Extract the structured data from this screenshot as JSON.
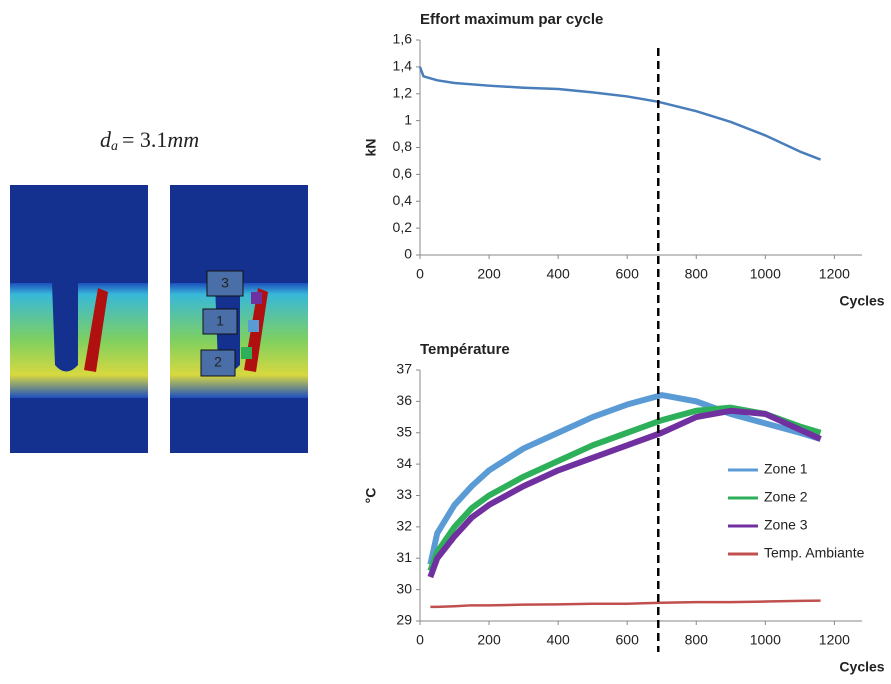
{
  "image": {
    "formula": {
      "symbol": "d",
      "subscript": "a",
      "equals": "= 3.1",
      "unit": "mm"
    },
    "zone_labels": [
      "3",
      "1",
      "2"
    ]
  },
  "chart_data": [
    {
      "type": "line",
      "title": "Effort maximum par cycle",
      "y_label": "kN",
      "x_label": "Cycles",
      "x": [
        0,
        10,
        50,
        100,
        200,
        300,
        400,
        500,
        600,
        690,
        800,
        900,
        1000,
        1100,
        1160
      ],
      "values": [
        1.4,
        1.33,
        1.3,
        1.28,
        1.26,
        1.245,
        1.235,
        1.21,
        1.18,
        1.14,
        1.07,
        0.99,
        0.89,
        0.77,
        0.71
      ],
      "color": "#4a7ebb",
      "marker_x": 690,
      "xlim": [
        0,
        1280
      ],
      "xticks": [
        0,
        200,
        400,
        600,
        800,
        1000,
        1200
      ],
      "ylim": [
        0,
        1.6
      ],
      "yticks": [
        0,
        {
          "value": 0.2,
          "label": "0,2"
        },
        {
          "value": 0.4,
          "label": "0,4"
        },
        {
          "value": 0.6,
          "label": "0,6"
        },
        {
          "value": 0.8,
          "label": "0,8"
        },
        1,
        {
          "value": 1.2,
          "label": "1,2"
        },
        {
          "value": 1.4,
          "label": "1,4"
        },
        {
          "value": 1.6,
          "label": "1,6"
        }
      ],
      "grid": false
    },
    {
      "type": "line",
      "title": "Température",
      "y_label": "°C",
      "x_label": "Cycles",
      "x": [
        30,
        50,
        100,
        150,
        200,
        300,
        400,
        500,
        600,
        700,
        800,
        900,
        1000,
        1100,
        1160
      ],
      "series": [
        {
          "name": "Zone 1",
          "color": "#5b9bd5",
          "values": [
            30.8,
            31.8,
            32.7,
            33.3,
            33.8,
            34.5,
            35.0,
            35.5,
            35.9,
            36.2,
            36.0,
            35.6,
            35.3,
            35.0,
            34.8
          ]
        },
        {
          "name": "Zone 2",
          "color": "#2eb05a",
          "values": [
            30.6,
            31.2,
            32.0,
            32.6,
            33.0,
            33.6,
            34.1,
            34.6,
            35.0,
            35.4,
            35.7,
            35.8,
            35.6,
            35.2,
            35.0
          ]
        },
        {
          "name": "Zone 3",
          "color": "#7030a0",
          "values": [
            30.4,
            31.0,
            31.7,
            32.3,
            32.7,
            33.3,
            33.8,
            34.2,
            34.6,
            35.0,
            35.5,
            35.7,
            35.6,
            35.1,
            34.8
          ]
        },
        {
          "name": "Temp. Ambiante",
          "color": "#c0504d",
          "values": [
            29.45,
            29.45,
            29.47,
            29.5,
            29.5,
            29.52,
            29.53,
            29.55,
            29.55,
            29.58,
            29.6,
            29.6,
            29.62,
            29.64,
            29.65
          ]
        }
      ],
      "xlim": [
        0,
        1280
      ],
      "xticks": [
        0,
        200,
        400,
        600,
        800,
        1000,
        1200
      ],
      "ylim": [
        29,
        37
      ],
      "yticks": [
        29,
        30,
        31,
        32,
        33,
        34,
        35,
        36,
        37
      ],
      "grid": false,
      "legend": "right"
    }
  ]
}
